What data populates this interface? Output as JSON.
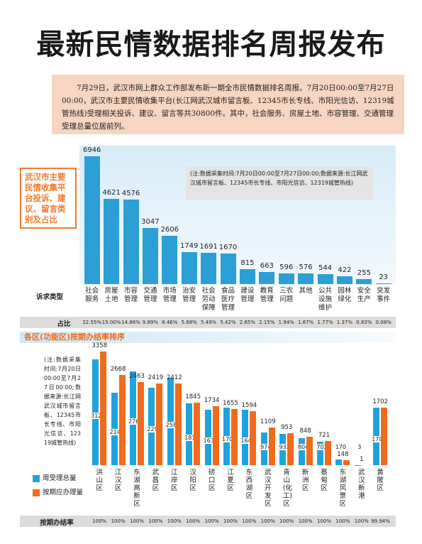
{
  "header": {
    "title": "最新民情数据排名周报发布"
  },
  "intro": "7月29日，武汉市网上群众工作部发布新一期全市民情数据排名周报。7月20日00:00至7月27日00:00，武汉市主要民情收集平台(长江网武汉城市留言板、12345市长专线、市阳光信访、12319城管热线)受理相关投诉、建议、留言等共30800件。其中，社会服务、房屋土地、市容管理、交通管理受理总量位居前列。",
  "chart_data": [
    {
      "type": "bar",
      "title": "武汉市主要民情收集平台投诉、建议、留言类别及占比",
      "note": "(注:数据采集时间:7月20日00:00至7月27日00:00;数据来源:长江网武汉城市留言板、12345市长专线、市阳光信访、12319城管热线)",
      "category_label": "诉求类型",
      "categories": [
        "社会服务",
        "房屋土地",
        "市容管理",
        "交通管理",
        "市场管理",
        "治安管理",
        "社会劳动保障",
        "食品医疗管理",
        "建设管理",
        "教育管理",
        "三农问题",
        "其他",
        "公共设施维护",
        "园林绿化",
        "安全生产",
        "突发事件"
      ],
      "values": [
        6946,
        4621,
        4576,
        3047,
        2606,
        1749,
        1691,
        1670,
        815,
        663,
        596,
        576,
        544,
        422,
        255,
        23
      ],
      "color": "#2b9fd6",
      "share": {
        "name": "占比",
        "values": [
          22.55,
          15.0,
          14.86,
          9.89,
          8.46,
          5.68,
          5.49,
          5.42,
          2.65,
          2.15,
          1.94,
          1.87,
          1.77,
          1.37,
          0.83,
          0.08
        ],
        "value_labels": [
          "22.55%",
          "15.00%",
          "14.86%",
          "9.89%",
          "8.46%",
          "5.68%",
          "5.49%",
          "5.42%",
          "2.65%",
          "2.15%",
          "1.94%",
          "1.87%",
          "1.77%",
          "1.37%",
          "0.83%",
          "0.08%"
        ]
      }
    },
    {
      "type": "grouped_bar",
      "title": "各区(功能区)按期办结率排序",
      "note": "(注:数据采集时间:7月20日00:00至7月27日00:00;数据来源:长江网武汉城市留言板、12345市长专线、市阳光信访、12319城管热线)",
      "categories": [
        "洪山区",
        "江汉区",
        "东湖高新区",
        "武昌区",
        "江岸区",
        "汉阳区",
        "硚口区",
        "江夏区",
        "东西湖区",
        "武汉开发区",
        "青山(化工)区",
        "新洲区",
        "蔡甸区",
        "东湖风景区",
        "武汉新港",
        "黄陂区"
      ],
      "series": [
        {
          "name": "周受理总量",
          "color": "#1fa3dc",
          "values": [
            3124,
            2147,
            2764,
            2294,
            2580,
            1819,
            1638,
            1707,
            1647,
            974,
            932,
            804,
            702,
            170,
            3,
            1705
          ]
        },
        {
          "name": "按期应办理量",
          "color": "#f26a1b",
          "values": [
            3358,
            2668,
            2463,
            2419,
            2412,
            1845,
            1734,
            1655,
            1594,
            1109,
            953,
            848,
            721,
            148,
            1,
            1702
          ]
        }
      ],
      "rate": {
        "name": "按期办结率",
        "values": [
          100,
          100,
          100,
          100,
          100,
          100,
          100,
          100,
          100,
          100,
          100,
          100,
          100,
          100,
          100,
          99.94
        ],
        "value_labels": [
          "100%",
          "100%",
          "100%",
          "100%",
          "100%",
          "100%",
          "100%",
          "100%",
          "100%",
          "100%",
          "100%",
          "100%",
          "100%",
          "100%",
          "100%",
          "99.94%"
        ]
      }
    }
  ]
}
